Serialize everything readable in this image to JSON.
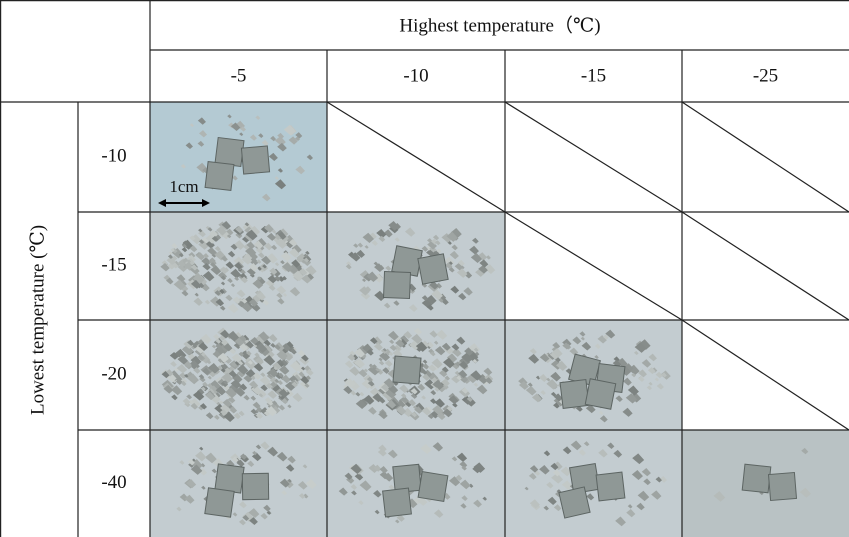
{
  "table": {
    "header": {
      "title": "Highest temperature（℃)",
      "columns": [
        "-5",
        "-10",
        "-15",
        "-25"
      ]
    },
    "row_header": "Lowest temperature (℃)",
    "rows": [
      "-10",
      "-15",
      "-20",
      "-40"
    ],
    "scale_label": "1cm"
  }
}
